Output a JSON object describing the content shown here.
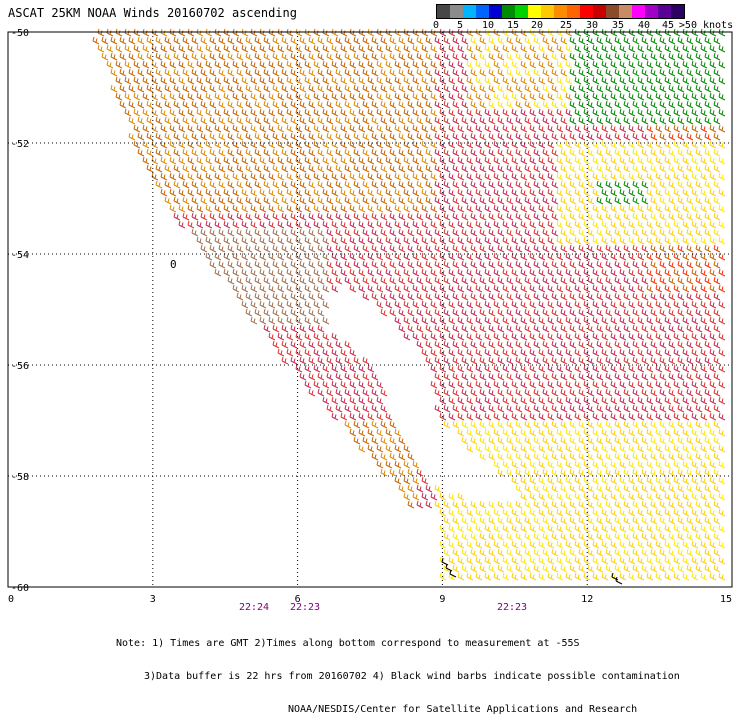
{
  "title": "ASCAT 25KM NOAA Winds 20160702 ascending",
  "legend": {
    "ticks": [
      "0",
      "5",
      "10",
      "15",
      "20",
      "25",
      "30",
      "35",
      "40",
      "45",
      ">50 knots"
    ],
    "colors": [
      "#474747",
      "#8c8c8c",
      "#00b4ff",
      "#0064ff",
      "#0000d2",
      "#008c00",
      "#00d200",
      "#ffff00",
      "#ffc800",
      "#ff8c00",
      "#ff6400",
      "#ff0000",
      "#c80000",
      "#8c4b28",
      "#c88c64",
      "#ff00ff",
      "#a000c8",
      "#5a0096",
      "#2d0064"
    ]
  },
  "map": {
    "latitude_labels": [
      "-50",
      "-52",
      "-54",
      "-56",
      "-58",
      "-60"
    ],
    "longitude_labels": [
      "0",
      "3",
      "6",
      "9",
      "12",
      "15"
    ],
    "time_labels": [
      "22:24",
      "22:23",
      "22:23"
    ],
    "island_label": "0"
  },
  "notes": {
    "line1": "Note: 1) Times are GMT 2)Times along bottom correspond to measurement at -55S",
    "line2": "3)Data buffer is 22 hrs from 20160702 4) Black wind barbs indicate possible contamination",
    "line3": "NOAA/NESDIS/Center for Satellite Applications and Research"
  },
  "colors": {
    "time_label": "#800080",
    "barb_palette": [
      "#c86400",
      "#e08a00",
      "#ffd200",
      "#ffe800",
      "#e03030",
      "#c82850",
      "#d02848",
      "#a07050",
      "#008c00",
      "#ff3000"
    ]
  }
}
